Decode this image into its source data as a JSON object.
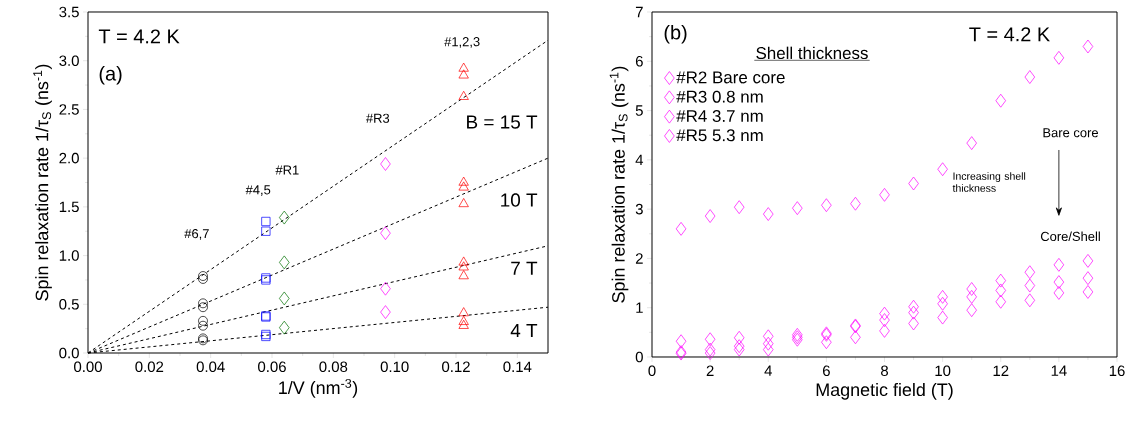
{
  "chart_data": [
    {
      "type": "scatter",
      "xlabel": "1/V (nm$^{-3}$)",
      "ylabel": "Spin relaxation rate 1/τ$_{S}$ (ns$^{-1}$)",
      "xlim": [
        0,
        0.15
      ],
      "ylim": [
        0,
        3.5
      ],
      "xticks": [
        {
          "value": 0,
          "label": "0.00"
        },
        {
          "value": 0.02,
          "label": "0.02"
        },
        {
          "value": 0.04,
          "label": "0.04"
        },
        {
          "value": 0.06,
          "label": "0.06"
        },
        {
          "value": 0.08,
          "label": "0.08"
        },
        {
          "value": 0.1,
          "label": "0.10"
        },
        {
          "value": 0.12,
          "label": "0.12"
        },
        {
          "value": 0.14,
          "label": "0.14"
        }
      ],
      "yticks": [
        {
          "value": 0,
          "label": "0.0"
        },
        {
          "value": 0.5,
          "label": "0.5"
        },
        {
          "value": 1,
          "label": "1.0"
        },
        {
          "value": 1.5,
          "label": "1.5"
        },
        {
          "value": 2,
          "label": "2.0"
        },
        {
          "value": 2.5,
          "label": "2.5"
        },
        {
          "value": 3,
          "label": "3.0"
        },
        {
          "value": 3.5,
          "label": "3.5"
        }
      ],
      "grid": false,
      "legend": false,
      "annotations": [
        "T = 4.2 K",
        "(a)",
        "#6,7",
        "#4,5",
        "#R1",
        "#R3",
        "#1,2,3",
        "B = 15 T",
        "10 T",
        "7 T",
        "4 T"
      ],
      "series": [
        {
          "type": "line",
          "color": "#000000",
          "line_style": "dashed",
          "marker": "none",
          "x": [
            0,
            0.15
          ],
          "values": [
            0,
            3.21
          ]
        },
        {
          "type": "line",
          "color": "#000000",
          "line_style": "dashed",
          "marker": "none",
          "x": [
            0,
            0.15
          ],
          "values": [
            0,
            2.0
          ]
        },
        {
          "type": "line",
          "color": "#000000",
          "line_style": "dashed",
          "marker": "none",
          "x": [
            0,
            0.15
          ],
          "values": [
            0,
            1.1
          ]
        },
        {
          "type": "line",
          "color": "#000000",
          "line_style": "dashed",
          "marker": "none",
          "x": [
            0,
            0.15
          ],
          "values": [
            0,
            0.47
          ]
        },
        {
          "color": "#000000",
          "marker": "circle",
          "x": [
            0.0375,
            0.0375,
            0.0375,
            0.0375
          ],
          "values": [
            0.15,
            0.33,
            0.51,
            0.79
          ]
        },
        {
          "color": "#000000",
          "marker": "circle",
          "x": [
            0.0375,
            0.0375,
            0.0375,
            0.0375
          ],
          "values": [
            0.13,
            0.28,
            0.47,
            0.76
          ]
        },
        {
          "color": "#0000ff",
          "marker": "square",
          "x": [
            0.058,
            0.058,
            0.058,
            0.058
          ],
          "values": [
            0.19,
            0.38,
            0.77,
            1.35
          ]
        },
        {
          "color": "#0000ff",
          "marker": "square",
          "x": [
            0.058,
            0.058,
            0.058,
            0.058
          ],
          "values": [
            0.17,
            0.37,
            0.75,
            1.25
          ]
        },
        {
          "color": "#007000",
          "marker": "diamond",
          "x": [
            0.064,
            0.064,
            0.064,
            0.064
          ],
          "values": [
            0.26,
            0.56,
            0.93,
            1.39
          ]
        },
        {
          "color": "#ff00ff",
          "marker": "diamond",
          "x": [
            0.097,
            0.097,
            0.097,
            0.097
          ],
          "values": [
            0.42,
            0.66,
            1.23,
            1.94
          ]
        },
        {
          "color": "#ff0000",
          "marker": "triangle",
          "x": [
            0.1225,
            0.1225,
            0.1225,
            0.1225
          ],
          "values": [
            0.28,
            0.79,
            1.53,
            2.63
          ]
        },
        {
          "color": "#ff0000",
          "marker": "triangle",
          "x": [
            0.1225,
            0.1225,
            0.1225,
            0.1225
          ],
          "values": [
            0.41,
            0.93,
            1.75,
            2.85
          ]
        },
        {
          "color": "#ff0000",
          "marker": "triangle",
          "x": [
            0.1225,
            0.1225,
            0.1225,
            0.1225
          ],
          "values": [
            0.32,
            0.88,
            1.7,
            2.92
          ]
        }
      ]
    },
    {
      "type": "scatter",
      "xlabel": "Magnetic field (T)",
      "ylabel": "Spin relaxation rate 1/τ$_{S}$ (ns$^{-1}$)",
      "xlim": [
        0,
        16
      ],
      "ylim": [
        0,
        7
      ],
      "xticks": [
        0,
        2,
        4,
        6,
        8,
        10,
        12,
        14,
        16
      ],
      "yticks": [
        0,
        1,
        2,
        3,
        4,
        5,
        6,
        7
      ],
      "grid": false,
      "legend": "top left",
      "legend_title": "Shell thickness",
      "marker": "diamond",
      "x": [
        1,
        2,
        3,
        4,
        5,
        6,
        7,
        8,
        9,
        10,
        11,
        12,
        13,
        14,
        15
      ],
      "annotations": [
        "(b)",
        "T = 4.2 K",
        "Bare core",
        "Increasing shell thickness",
        "Core/Shell"
      ],
      "series": [
        {
          "name": "#R2 Bare core",
          "color": "#ff00ff",
          "values": [
            2.6,
            2.86,
            3.04,
            2.9,
            3.02,
            3.08,
            3.11,
            3.29,
            3.52,
            3.81,
            4.34,
            5.2,
            5.68,
            6.07,
            6.3
          ]
        },
        {
          "name": "#R3 0.8 nm",
          "color": "#ff00ff",
          "values": [
            0.32,
            0.36,
            0.39,
            0.42,
            0.45,
            0.48,
            0.64,
            0.88,
            1.02,
            1.22,
            1.38,
            1.55,
            1.72,
            1.87,
            1.95
          ]
        },
        {
          "name": "#R4 3.7 nm",
          "color": "#ff00ff",
          "values": [
            0.1,
            0.15,
            0.22,
            0.27,
            0.4,
            0.45,
            0.62,
            0.75,
            0.9,
            1.08,
            1.22,
            1.35,
            1.45,
            1.52,
            1.6
          ]
        },
        {
          "name": "#R5 5.3 nm",
          "color": "#ff00ff",
          "values": [
            0.07,
            0.08,
            0.15,
            0.15,
            0.35,
            0.3,
            0.4,
            0.53,
            0.68,
            0.8,
            0.95,
            1.12,
            1.15,
            1.3,
            1.32
          ]
        }
      ]
    }
  ]
}
